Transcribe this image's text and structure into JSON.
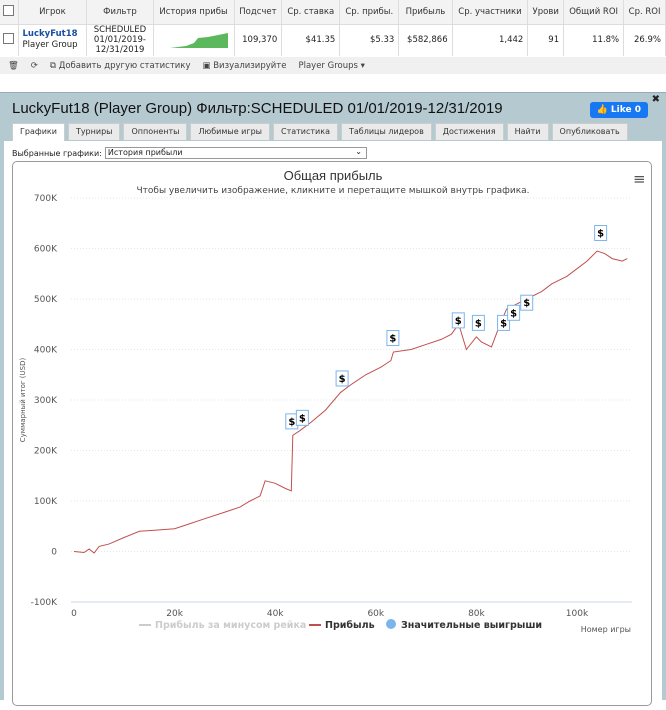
{
  "table": {
    "headers": [
      "Игрок",
      "Фильтр",
      "История прибы",
      "Подсчет",
      "Ср. ставка",
      "Ср. прибы.",
      "Прибыль",
      "Ср. участники",
      "Урови",
      "Общий ROI",
      "Ср. ROI"
    ],
    "row": {
      "player": "LuckyFut18",
      "group": "Player Group",
      "filter1": "SCHEDULED",
      "filter2": "01/01/2019-",
      "filter3": "12/31/2019",
      "count": "109,370",
      "avg_stake": "$41.35",
      "avg_profit": "$5.33",
      "profit": "$582,866",
      "avg_entrants": "1,442",
      "level": "91",
      "total_roi": "11.8%",
      "avg_roi": "26.9%"
    }
  },
  "toolbar": {
    "add_stat": "Добавить другую статистику",
    "visualize": "Визуализируйте",
    "groups": "Player Groups"
  },
  "window": {
    "title": "LuckyFut18 (Player Group) Фильтр:SCHEDULED 01/01/2019-12/31/2019",
    "like": "Like 0",
    "tabs": [
      "Графики",
      "Турниры",
      "Оппоненты",
      "Любимые игры",
      "Статистика",
      "Таблицы лидеров",
      "Достижения",
      "Найти",
      "Опубликовать"
    ],
    "select_label": "Выбранные графики:",
    "select_value": "История прибыли"
  },
  "chart_data": {
    "type": "line",
    "title": "Общая прибыль",
    "subtitle": "Чтобы увеличить изображение, кликните и перетащите мышкой внутрь графика.",
    "ylabel": "Суммарный итог (USD)",
    "xlabel": "Номер игры",
    "xlim": [
      0,
      110000
    ],
    "ylim": [
      -100000,
      700000
    ],
    "yticks": [
      "700K",
      "600K",
      "500K",
      "400K",
      "300K",
      "200K",
      "100K",
      "0",
      "-100K"
    ],
    "xticks": [
      "0",
      "20k",
      "40k",
      "60k",
      "80k",
      "100k"
    ],
    "legend": [
      "Прибыль за минусом рейка",
      "Прибыль",
      "Значительные выигрыши"
    ],
    "legend_placement": "bottom",
    "colors": {
      "profit": "#c0504d",
      "rake": "#cccccc",
      "wins": "#7cb5ec"
    },
    "series": [
      {
        "name": "Прибыль",
        "x": [
          0,
          2000,
          3000,
          4000,
          5000,
          7000,
          10000,
          13000,
          16000,
          20000,
          23000,
          26000,
          30000,
          33000,
          35000,
          37000,
          38000,
          40000,
          42000,
          43200,
          43500,
          45000,
          47000,
          50000,
          53000,
          55000,
          58000,
          61000,
          63000,
          63500,
          67000,
          70000,
          73000,
          75000,
          76500,
          78000,
          80000,
          81000,
          83000,
          84500,
          86000,
          88000,
          90000,
          93000,
          95000,
          98000,
          100000,
          102000,
          104000,
          105500,
          107000,
          109000,
          110000
        ],
        "y": [
          0,
          -2000,
          5000,
          -3000,
          10000,
          15000,
          28000,
          40000,
          42000,
          45000,
          55000,
          65000,
          78000,
          88000,
          100000,
          110000,
          140000,
          135000,
          125000,
          120000,
          230000,
          240000,
          255000,
          280000,
          315000,
          330000,
          350000,
          365000,
          378000,
          395000,
          400000,
          410000,
          420000,
          430000,
          450000,
          400000,
          425000,
          415000,
          405000,
          445000,
          480000,
          490000,
          500000,
          515000,
          530000,
          545000,
          560000,
          575000,
          595000,
          590000,
          580000,
          575000,
          580000
        ]
      },
      {
        "name": "Значительные выигрыши",
        "x": [
          43300,
          45400,
          53300,
          63400,
          76400,
          80400,
          85400,
          87400,
          90000,
          104700
        ],
        "y": [
          225000,
          232000,
          310000,
          390000,
          425000,
          420000,
          420000,
          440000,
          460000,
          598000
        ]
      }
    ]
  }
}
